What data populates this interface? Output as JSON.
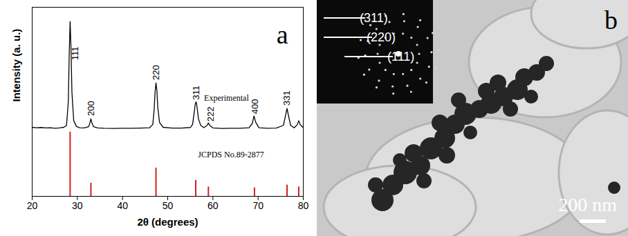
{
  "chart_data": {
    "panel": "a",
    "type": "line",
    "x_label": "2θ (degrees)",
    "y_label": "Intensity (a. u.)",
    "xlim": [
      20,
      80
    ],
    "xticks": [
      20,
      30,
      40,
      50,
      60,
      70,
      80
    ],
    "ylim": [
      0,
      100
    ],
    "tick_labels": "x",
    "grid": false,
    "series": [
      {
        "type": "line",
        "color": "#000000",
        "x": [
          20,
          21,
          22,
          23,
          24,
          25,
          26,
          27,
          27.6,
          28.0,
          28.2,
          28.4,
          28.6,
          28.8,
          29.2,
          29.8,
          30.5,
          31.5,
          32.5,
          32.8,
          33.0,
          33.2,
          33.6,
          34.5,
          36,
          38,
          40,
          42,
          44,
          46,
          46.7,
          47.0,
          47.2,
          47.4,
          47.6,
          47.8,
          48.2,
          49,
          51,
          53,
          55,
          55.5,
          55.9,
          56.1,
          56.3,
          56.5,
          56.8,
          57.3,
          58,
          58.7,
          59.0,
          59.3,
          60,
          62,
          64,
          66,
          68,
          68.7,
          69.1,
          69.5,
          70.2,
          72,
          74,
          75.6,
          76.1,
          76.4,
          76.7,
          77.2,
          78,
          78.7,
          79.0,
          79.3,
          80
        ],
        "values": [
          36.5,
          36.3,
          36.4,
          36.2,
          36.3,
          36.0,
          36.2,
          36.5,
          37.5,
          50,
          75,
          92.5,
          78,
          55,
          40,
          37,
          36.3,
          36.2,
          36.8,
          39,
          41,
          39,
          36.8,
          36.2,
          36,
          35.9,
          36,
          36,
          36.1,
          36.3,
          38,
          46,
          55,
          60,
          56,
          47,
          39,
          36.5,
          36.1,
          36.1,
          36.4,
          38,
          45,
          49,
          50,
          47,
          41,
          37.5,
          36.3,
          37.5,
          38.8,
          37.5,
          36.2,
          35.9,
          36,
          36,
          36.3,
          38.5,
          42.5,
          39,
          36.3,
          36,
          36.1,
          37.5,
          43,
          46.5,
          43,
          37.5,
          36.2,
          38,
          40,
          38,
          36.3
        ]
      },
      {
        "type": "stick",
        "color": "#d42020",
        "x": [
          28.4,
          33.0,
          47.4,
          56.2,
          59.0,
          69.2,
          76.4,
          79.0
        ],
        "values": [
          34,
          7,
          15,
          8.5,
          5,
          4.5,
          6,
          5
        ]
      }
    ],
    "peak_labels": [
      {
        "text": "111",
        "x": 29.5,
        "y": 72
      },
      {
        "text": "200",
        "x": 33.0,
        "y": 42.5
      },
      {
        "text": "220",
        "x": 47.4,
        "y": 61.5
      },
      {
        "text": "311",
        "x": 56.3,
        "y": 51
      },
      {
        "text": "222",
        "x": 59.5,
        "y": 39.5
      },
      {
        "text": "400",
        "x": 69.4,
        "y": 43.5
      },
      {
        "text": "331",
        "x": 76.4,
        "y": 48
      }
    ],
    "annotations": [
      {
        "text": "Experimental",
        "x": 63,
        "y": 52
      },
      {
        "text": "JCPDS No.89-2877",
        "x": 64,
        "y": 22
      }
    ]
  },
  "image": {
    "panel": "b",
    "inset_labels": [
      "(311)",
      "(220)",
      "(111)"
    ],
    "scale_bar": "200 nm"
  }
}
